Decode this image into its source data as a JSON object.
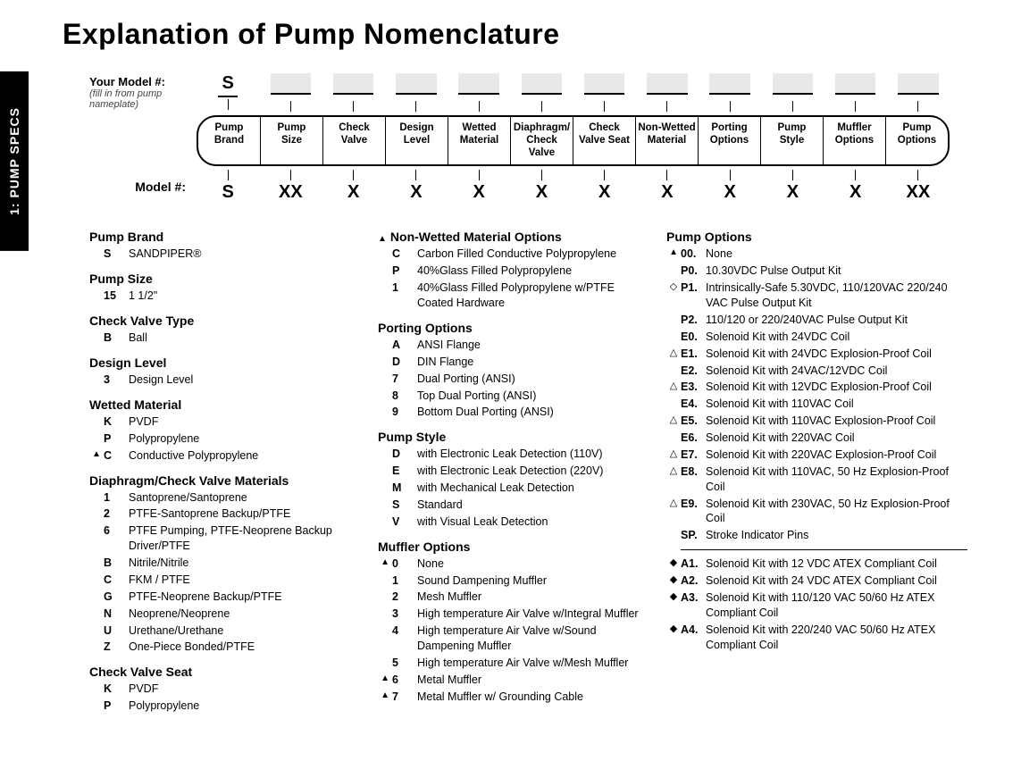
{
  "side_tab": "1: PUMP SPECS",
  "title": "Explanation of Pump Nomenclature",
  "your_model": {
    "label": "Your Model #:",
    "sub": "(fill in from pump nameplate)",
    "fixed_first": "S"
  },
  "model_row": {
    "label": "Model #:",
    "codes": [
      "S",
      "XX",
      "X",
      "X",
      "X",
      "X",
      "X",
      "X",
      "X",
      "X",
      "X",
      "XX"
    ]
  },
  "segments": [
    "Pump Brand",
    "Pump Size",
    "Check Valve",
    "Design Level",
    "Wetted Material",
    "Diaphragm/ Check Valve",
    "Check Valve Seat",
    "Non-Wetted Material",
    "Porting Options",
    "Pump Style",
    "Muffler Options",
    "Pump Options"
  ],
  "col1": [
    {
      "title": "Pump Brand",
      "items": [
        {
          "c": "S",
          "d": "SANDPIPER®"
        }
      ]
    },
    {
      "title": "Pump Size",
      "items": [
        {
          "c": "15",
          "d": "1 1/2\""
        }
      ]
    },
    {
      "title": "Check Valve Type",
      "items": [
        {
          "c": "B",
          "d": "Ball"
        }
      ]
    },
    {
      "title": "Design Level",
      "items": [
        {
          "c": "3",
          "d": "Design Level"
        }
      ]
    },
    {
      "title": "Wetted Material",
      "items": [
        {
          "c": "K",
          "d": "PVDF"
        },
        {
          "c": "P",
          "d": "Polypropylene"
        },
        {
          "c": "C",
          "d": "Conductive Polypropylene",
          "sym": "tri"
        }
      ]
    },
    {
      "title": "Diaphragm/Check Valve Materials",
      "items": [
        {
          "c": "1",
          "d": "Santoprene/Santoprene"
        },
        {
          "c": "2",
          "d": "PTFE-Santoprene Backup/PTFE"
        },
        {
          "c": "6",
          "d": "PTFE Pumping, PTFE-Neoprene Backup Driver/PTFE"
        },
        {
          "c": "B",
          "d": "Nitrile/Nitrile"
        },
        {
          "c": "C",
          "d": "FKM / PTFE"
        },
        {
          "c": "G",
          "d": "PTFE-Neoprene Backup/PTFE"
        },
        {
          "c": "N",
          "d": "Neoprene/Neoprene"
        },
        {
          "c": "U",
          "d": "Urethane/Urethane"
        },
        {
          "c": "Z",
          "d": "One-Piece Bonded/PTFE"
        }
      ]
    },
    {
      "title": "Check Valve Seat",
      "items": [
        {
          "c": "K",
          "d": "PVDF"
        },
        {
          "c": "P",
          "d": "Polypropylene"
        }
      ]
    }
  ],
  "col2": [
    {
      "title": "Non-Wetted Material Options",
      "title_sym": "tri",
      "items": [
        {
          "c": "C",
          "d": "Carbon Filled Conductive Polypropylene"
        },
        {
          "c": "P",
          "d": "40%Glass Filled Polypropylene"
        },
        {
          "c": "1",
          "d": "40%Glass Filled Polypropylene w/PTFE Coated Hardware"
        }
      ]
    },
    {
      "title": "Porting Options",
      "items": [
        {
          "c": "A",
          "d": "ANSI Flange"
        },
        {
          "c": "D",
          "d": "DIN Flange"
        },
        {
          "c": "7",
          "d": "Dual Porting (ANSI)"
        },
        {
          "c": "8",
          "d": "Top Dual Porting (ANSI)"
        },
        {
          "c": "9",
          "d": "Bottom Dual Porting (ANSI)"
        }
      ]
    },
    {
      "title": "Pump Style",
      "items": [
        {
          "c": "D",
          "d": "with Electronic Leak Detection (110V)"
        },
        {
          "c": "E",
          "d": "with Electronic Leak Detection (220V)"
        },
        {
          "c": "M",
          "d": "with Mechanical Leak Detection"
        },
        {
          "c": "S",
          "d": "Standard"
        },
        {
          "c": "V",
          "d": "with Visual Leak Detection"
        }
      ]
    },
    {
      "title": "Muffler Options",
      "items": [
        {
          "c": "0",
          "d": "None",
          "sym": "tri"
        },
        {
          "c": "1",
          "d": "Sound Dampening Muffler"
        },
        {
          "c": "2",
          "d": "Mesh Muffler"
        },
        {
          "c": "3",
          "d": "High temperature Air Valve w/Integral Muffler"
        },
        {
          "c": "4",
          "d": "High temperature Air Valve w/Sound Dampening Muffler"
        },
        {
          "c": "5",
          "d": "High temperature  Air Valve w/Mesh Muffler"
        },
        {
          "c": "6",
          "d": "Metal Muffler",
          "sym": "tri"
        },
        {
          "c": "7",
          "d": "Metal Muffler w/ Grounding Cable",
          "sym": "tri"
        }
      ]
    }
  ],
  "col3_title": "Pump Options",
  "col3_a": [
    {
      "c": "00.",
      "d": "None",
      "sym": "tri"
    },
    {
      "c": "P0.",
      "d": "10.30VDC Pulse Output Kit"
    },
    {
      "c": "P1.",
      "d": "Intrinsically-Safe 5.30VDC, 110/120VAC 220/240 VAC Pulse Output Kit",
      "sym": "dia-o"
    },
    {
      "c": "P2.",
      "d": "110/120 or 220/240VAC Pulse Output Kit"
    },
    {
      "c": "E0.",
      "d": "Solenoid Kit with 24VDC Coil"
    },
    {
      "c": "E1.",
      "d": "Solenoid Kit with 24VDC Explosion-Proof Coil",
      "sym": "tri-o"
    },
    {
      "c": "E2.",
      "d": "Solenoid Kit with 24VAC/12VDC Coil"
    },
    {
      "c": "E3.",
      "d": "Solenoid Kit with 12VDC Explosion-Proof Coil",
      "sym": "tri-o"
    },
    {
      "c": "E4.",
      "d": "Solenoid Kit with 110VAC Coil"
    },
    {
      "c": "E5.",
      "d": "Solenoid Kit with 110VAC Explosion-Proof Coil",
      "sym": "tri-o"
    },
    {
      "c": "E6.",
      "d": "Solenoid Kit with 220VAC Coil"
    },
    {
      "c": "E7.",
      "d": "Solenoid Kit with 220VAC Explosion-Proof Coil",
      "sym": "tri-o"
    },
    {
      "c": "E8.",
      "d": "Solenoid Kit with 110VAC, 50 Hz Explosion-Proof Coil",
      "sym": "tri-o"
    },
    {
      "c": "E9.",
      "d": "Solenoid Kit with 230VAC, 50 Hz Explosion-Proof Coil",
      "sym": "tri-o"
    },
    {
      "c": "SP.",
      "d": "Stroke Indicator Pins"
    }
  ],
  "col3_b": [
    {
      "c": "A1.",
      "d": "Solenoid Kit with 12 VDC ATEX Compliant Coil",
      "sym": "dia"
    },
    {
      "c": "A2.",
      "d": "Solenoid Kit with 24 VDC ATEX Compliant Coil",
      "sym": "dia"
    },
    {
      "c": "A3.",
      "d": "Solenoid Kit with 110/120 VAC 50/60 Hz ATEX Compliant Coil",
      "sym": "dia"
    },
    {
      "c": "A4.",
      "d": "Solenoid Kit with 220/240 VAC 50/60 Hz ATEX Compliant Coil",
      "sym": "dia"
    }
  ],
  "style": {
    "bg": "#ffffff",
    "text": "#000000",
    "fill_box": "#e8e8e8",
    "title_fontsize": 32,
    "body_fontsize": 12.5,
    "group_title_fontsize": 14
  }
}
